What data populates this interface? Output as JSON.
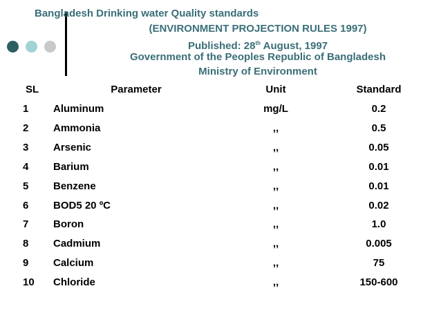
{
  "header": {
    "title": "Bangladesh Drinking water Quality standards",
    "rules": "(ENVIRONMENT PROJECTION RULES 1997)",
    "published": {
      "before": "Published: 28",
      "sup": "th",
      "after": " August, 1997"
    },
    "government": "Government of the Peoples Republic of Bangladesh",
    "ministry": "Ministry of Environment"
  },
  "table": {
    "columns": [
      "SL",
      "Parameter",
      "Unit",
      "Standard"
    ],
    "rows": [
      [
        "1",
        "Aluminum",
        "mg/L",
        "0.2"
      ],
      [
        "2",
        "Ammonia",
        ",,",
        "0.5"
      ],
      [
        "3",
        "Arsenic",
        ",,",
        "0.05"
      ],
      [
        "4",
        "Barium",
        ",,",
        "0.01"
      ],
      [
        "5",
        "Benzene",
        ",,",
        "0.01"
      ],
      [
        "6",
        "BOD5 20 ºC",
        ",,",
        "0.02"
      ],
      [
        "7",
        "Boron",
        ",,",
        "1.0"
      ],
      [
        "8",
        "Cadmium",
        ",,",
        "0.005"
      ],
      [
        "9",
        "Calcium",
        ",,",
        "75"
      ],
      [
        "10",
        "Chloride",
        ",,",
        "150-600"
      ]
    ]
  }
}
